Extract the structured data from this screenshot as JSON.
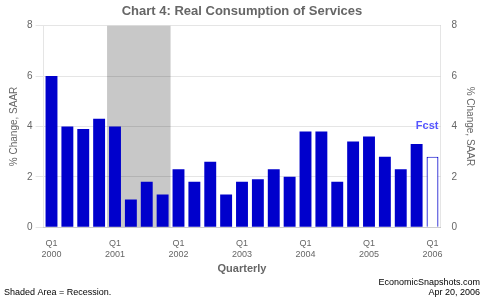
{
  "chart_data": {
    "type": "bar",
    "title": "Chart 4: Real Consumption of Services",
    "xlabel": "Quarterly",
    "ylabel": "% Change, SAAR",
    "y2label": "% Change, SAAR",
    "categories": [
      "Q1\n2000",
      null,
      null,
      null,
      "Q1\n2001",
      null,
      null,
      null,
      "Q1\n2002",
      null,
      null,
      null,
      "Q1\n2003",
      null,
      null,
      null,
      "Q1\n2004",
      null,
      null,
      null,
      "Q1\n2005",
      null,
      null,
      null,
      "Q1\n2006"
    ],
    "values": [
      6.0,
      4.0,
      3.9,
      4.3,
      4.0,
      1.1,
      1.8,
      1.3,
      2.3,
      1.8,
      2.6,
      1.3,
      1.8,
      1.9,
      2.3,
      2.0,
      3.8,
      3.8,
      1.8,
      3.4,
      3.6,
      2.8,
      2.3,
      3.3,
      2.8
    ],
    "is_forecast": [
      false,
      false,
      false,
      false,
      false,
      false,
      false,
      false,
      false,
      false,
      false,
      false,
      false,
      false,
      false,
      false,
      false,
      false,
      false,
      false,
      false,
      false,
      false,
      false,
      true
    ],
    "color": "#0000CC",
    "forecast_color": "white",
    "ylim": [
      0,
      8
    ],
    "yticks": [
      0,
      2,
      4,
      6,
      8
    ],
    "y2lim": [
      0,
      8
    ],
    "y2ticks": [
      0,
      2,
      4,
      6,
      8
    ],
    "grid": true,
    "shaded_range": {
      "start": 4,
      "end": 7,
      "color": "#C8C8C8"
    },
    "annotations": [
      {
        "text": "Fcst",
        "y": 4.0,
        "color": "#5555FF"
      },
      {
        "text": "Shaded Area = Recession."
      },
      {
        "text": "EconomicSnapshots.com\nApr 20, 2006"
      }
    ]
  }
}
